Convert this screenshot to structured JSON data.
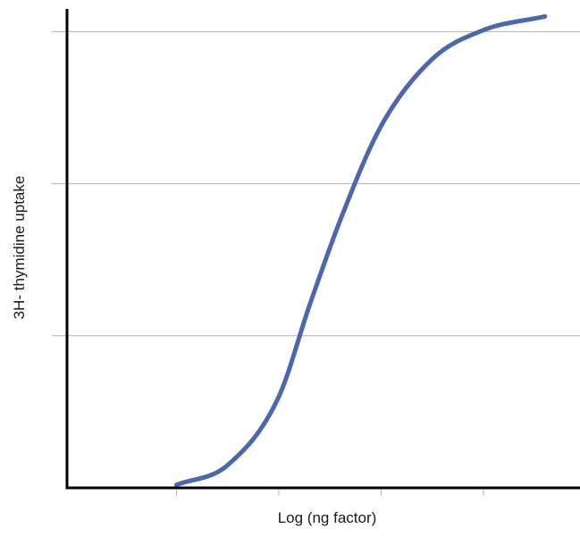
{
  "chart_data": {
    "type": "line",
    "title": "",
    "xlabel": "Log (ng factor)",
    "ylabel": "3H- thymidine uptake",
    "x_tick_labels": [],
    "y_tick_labels": [],
    "xlim": [
      0,
      5
    ],
    "ylim": [
      0,
      3
    ],
    "x_ticks": [
      1,
      2,
      3,
      4
    ],
    "y_gridlines": [
      1,
      2,
      3
    ],
    "grid": "horizontal",
    "legend": "none",
    "series": [
      {
        "color": "#4a67b0",
        "curve": "sigmoid",
        "x": [
          1.0,
          1.5,
          2.0,
          2.3,
          2.6,
          3.0,
          3.5,
          4.0,
          4.6
        ],
        "y": [
          0.02,
          0.15,
          0.6,
          1.2,
          1.76,
          2.38,
          2.82,
          3.01,
          3.1
        ]
      }
    ],
    "axis_color": "#000000",
    "grid_color": "#b3b3b3"
  }
}
